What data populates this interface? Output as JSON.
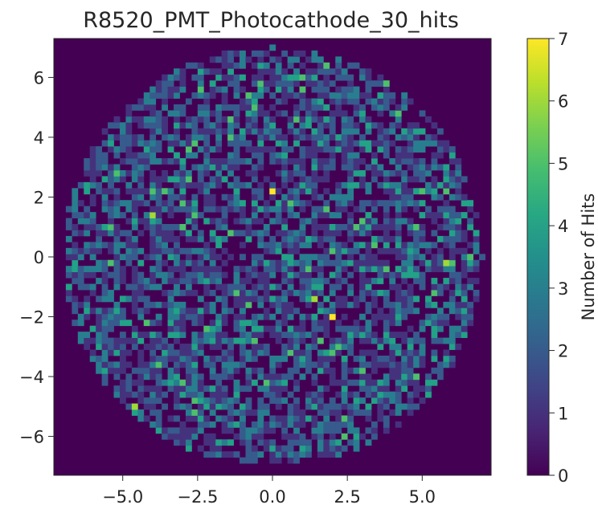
{
  "chart_data": {
    "type": "heatmap",
    "title": "R8520_PMT_Photocathode_30_hits",
    "xlabel": "",
    "ylabel": "",
    "xlim": [
      -7.3,
      7.3
    ],
    "ylim": [
      -7.3,
      7.3
    ],
    "x_ticks": [
      -5.0,
      -2.5,
      0.0,
      2.5,
      5.0
    ],
    "x_tick_labels": [
      "−5.0",
      "−2.5",
      "0.0",
      "2.5",
      "5.0"
    ],
    "y_ticks": [
      -6,
      -4,
      -2,
      0,
      2,
      4,
      6
    ],
    "y_tick_labels": [
      "−6",
      "−4",
      "−2",
      "0",
      "2",
      "4",
      "6"
    ],
    "bins": 73,
    "detector_radius": 7.0,
    "value_range": [
      0,
      7
    ],
    "colorbar": {
      "label": "Number of Hits",
      "ticks": [
        0,
        1,
        2,
        3,
        4,
        5,
        6,
        7
      ],
      "tick_labels": [
        "0",
        "1",
        "2",
        "3",
        "4",
        "5",
        "6",
        "7"
      ]
    },
    "colormap": "viridis",
    "hot_cells": [
      {
        "x": -0.1,
        "y": 2.1,
        "value": 7
      },
      {
        "x": 1.9,
        "y": -2.1,
        "value": 7
      },
      {
        "x": 1.3,
        "y": -1.4,
        "value": 6
      },
      {
        "x": -4.1,
        "y": 1.4,
        "value": 6
      },
      {
        "x": -4.1,
        "y": 2.1,
        "value": 5
      },
      {
        "x": -4.7,
        "y": -5.0,
        "value": 6
      },
      {
        "x": 5.7,
        "y": -0.3,
        "value": 6
      },
      {
        "x": 1.7,
        "y": 6.3,
        "value": 5
      },
      {
        "x": -2.5,
        "y": 6.1,
        "value": 4
      },
      {
        "x": 2.3,
        "y": -6.0,
        "value": 5
      },
      {
        "x": 0.7,
        "y": 4.6,
        "value": 5
      },
      {
        "x": 4.9,
        "y": 2.2,
        "value": 5
      }
    ]
  }
}
